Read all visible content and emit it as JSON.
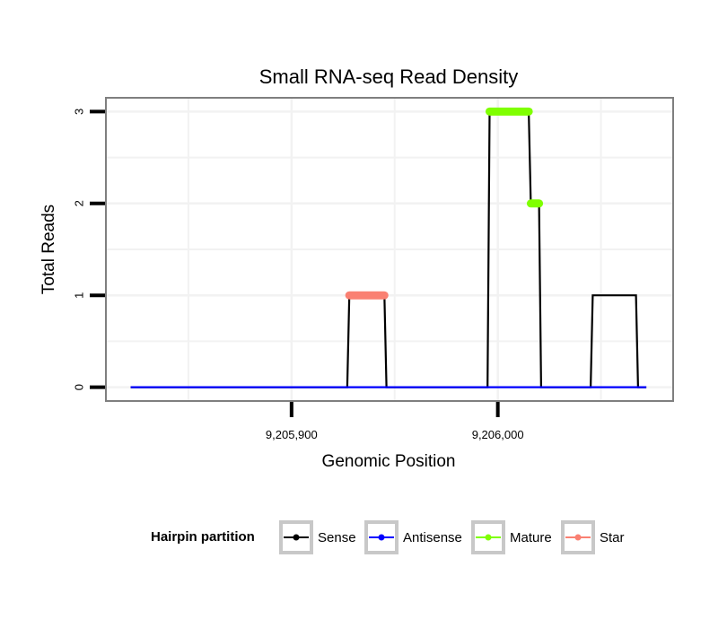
{
  "chart_data": {
    "type": "line",
    "title": "Small RNA-seq Read Density",
    "xlabel": "Genomic Position",
    "ylabel": "Total Reads",
    "xlim": [
      9205810,
      9206085
    ],
    "ylim": [
      -0.15,
      3.15
    ],
    "x_ticks": [
      9205900,
      9206000
    ],
    "x_tick_labels": [
      "9,205,900",
      "9,206,000"
    ],
    "y_ticks": [
      0,
      1,
      2,
      3
    ],
    "y_tick_labels": [
      "0",
      "1",
      "2",
      "3"
    ],
    "grid": true,
    "legend": {
      "title": "Hairpin partition",
      "position": "bottom",
      "entries": [
        {
          "name": "Sense",
          "color": "#000000"
        },
        {
          "name": "Antisense",
          "color": "#0000ff"
        },
        {
          "name": "Mature",
          "color": "#7fff00"
        },
        {
          "name": "Star",
          "color": "#fa8072"
        }
      ]
    },
    "series": [
      {
        "name": "Sense",
        "color": "#000000",
        "x": [
          9205822,
          9205927,
          9205928,
          9205945,
          9205946,
          9205995,
          9205996,
          9206015,
          9206016,
          9206020,
          9206021,
          9206045,
          9206046,
          9206067,
          9206068,
          9206072
        ],
        "y": [
          0,
          0,
          1,
          1,
          0,
          0,
          3,
          3,
          2,
          2,
          0,
          0,
          1,
          1,
          0,
          0
        ]
      },
      {
        "name": "Antisense",
        "color": "#0000ff",
        "x": [
          9205822,
          9206072
        ],
        "y": [
          0,
          0
        ]
      },
      {
        "name": "Mature",
        "color": "#7fff00",
        "segments": [
          {
            "x": [
              9205996,
              9206015
            ],
            "y": 3
          },
          {
            "x": [
              9206016,
              9206020
            ],
            "y": 2
          }
        ]
      },
      {
        "name": "Star",
        "color": "#fa8072",
        "segments": [
          {
            "x": [
              9205928,
              9205945
            ],
            "y": 1
          }
        ]
      }
    ]
  }
}
